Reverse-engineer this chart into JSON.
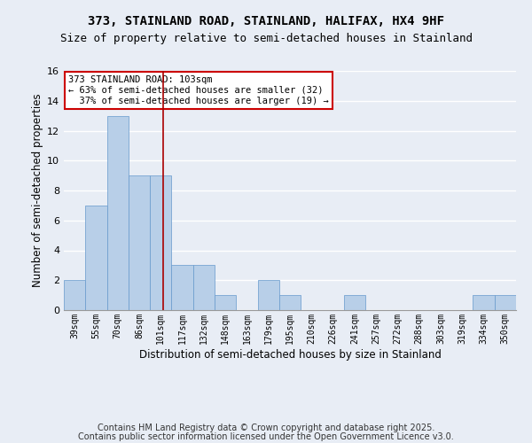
{
  "title": "373, STAINLAND ROAD, STAINLAND, HALIFAX, HX4 9HF",
  "subtitle": "Size of property relative to semi-detached houses in Stainland",
  "xlabel": "Distribution of semi-detached houses by size in Stainland",
  "ylabel": "Number of semi-detached properties",
  "bins": [
    "39sqm",
    "55sqm",
    "70sqm",
    "86sqm",
    "101sqm",
    "117sqm",
    "132sqm",
    "148sqm",
    "163sqm",
    "179sqm",
    "195sqm",
    "210sqm",
    "226sqm",
    "241sqm",
    "257sqm",
    "272sqm",
    "288sqm",
    "303sqm",
    "319sqm",
    "334sqm",
    "350sqm"
  ],
  "values": [
    2,
    7,
    13,
    9,
    9,
    3,
    3,
    1,
    0,
    2,
    1,
    0,
    0,
    1,
    0,
    0,
    0,
    0,
    0,
    1,
    1
  ],
  "bar_color": "#b8cfe8",
  "bar_edge_color": "#6699cc",
  "background_color": "#e8edf5",
  "grid_color": "#ffffff",
  "vline_pos": 4.125,
  "vline_color": "#aa0000",
  "annotation_line1": "373 STAINLAND ROAD: 103sqm",
  "annotation_line2": "← 63% of semi-detached houses are smaller (32)",
  "annotation_line3": "  37% of semi-detached houses are larger (19) →",
  "annotation_box_color": "#cc0000",
  "ylim": [
    0,
    16
  ],
  "yticks": [
    0,
    2,
    4,
    6,
    8,
    10,
    12,
    14,
    16
  ],
  "footer_line1": "Contains HM Land Registry data © Crown copyright and database right 2025.",
  "footer_line2": "Contains public sector information licensed under the Open Government Licence v3.0.",
  "title_fontsize": 10,
  "subtitle_fontsize": 9
}
